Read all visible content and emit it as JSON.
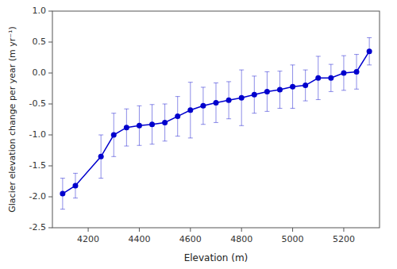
{
  "chart_data": {
    "type": "line",
    "xlabel": "Elevation (m)",
    "ylabel": "Glacier elevation change per year (m yr⁻¹)",
    "x": [
      4100,
      4150,
      4250,
      4300,
      4350,
      4400,
      4450,
      4500,
      4550,
      4600,
      4650,
      4700,
      4750,
      4800,
      4850,
      4900,
      4950,
      5000,
      5050,
      5100,
      5150,
      5200,
      5250,
      5300
    ],
    "values": [
      -1.95,
      -1.82,
      -1.35,
      -1.0,
      -0.88,
      -0.85,
      -0.83,
      -0.8,
      -0.7,
      -0.6,
      -0.53,
      -0.48,
      -0.44,
      -0.4,
      -0.35,
      -0.3,
      -0.27,
      -0.22,
      -0.2,
      -0.08,
      -0.08,
      0.0,
      0.02,
      0.35
    ],
    "error_low": [
      0.25,
      0.2,
      0.35,
      0.35,
      0.3,
      0.32,
      0.32,
      0.3,
      0.32,
      0.45,
      0.3,
      0.32,
      0.3,
      0.45,
      0.3,
      0.32,
      0.3,
      0.35,
      0.25,
      0.35,
      0.22,
      0.28,
      0.28,
      0.22
    ],
    "error_high": [
      0.25,
      0.2,
      0.35,
      0.35,
      0.3,
      0.32,
      0.32,
      0.3,
      0.32,
      0.45,
      0.3,
      0.32,
      0.3,
      0.45,
      0.3,
      0.32,
      0.3,
      0.35,
      0.25,
      0.35,
      0.22,
      0.28,
      0.28,
      0.22
    ],
    "color": "#0000cd",
    "marker": "circle",
    "line_style": "solid",
    "xlim": [
      4060,
      5340
    ],
    "ylim": [
      -2.5,
      1.0
    ],
    "xticks": [
      4200,
      4400,
      4600,
      4800,
      5000,
      5200
    ],
    "yticks": [
      -2.5,
      {
        "value": -2.0,
        "label": "-2.0"
      },
      -1.5,
      {
        "value": -1.0,
        "label": "-1.0"
      },
      -0.5,
      {
        "value": 0.0,
        "label": "0.0"
      },
      0.5,
      {
        "value": 1.0,
        "label": "1.0"
      }
    ],
    "grid": false
  }
}
